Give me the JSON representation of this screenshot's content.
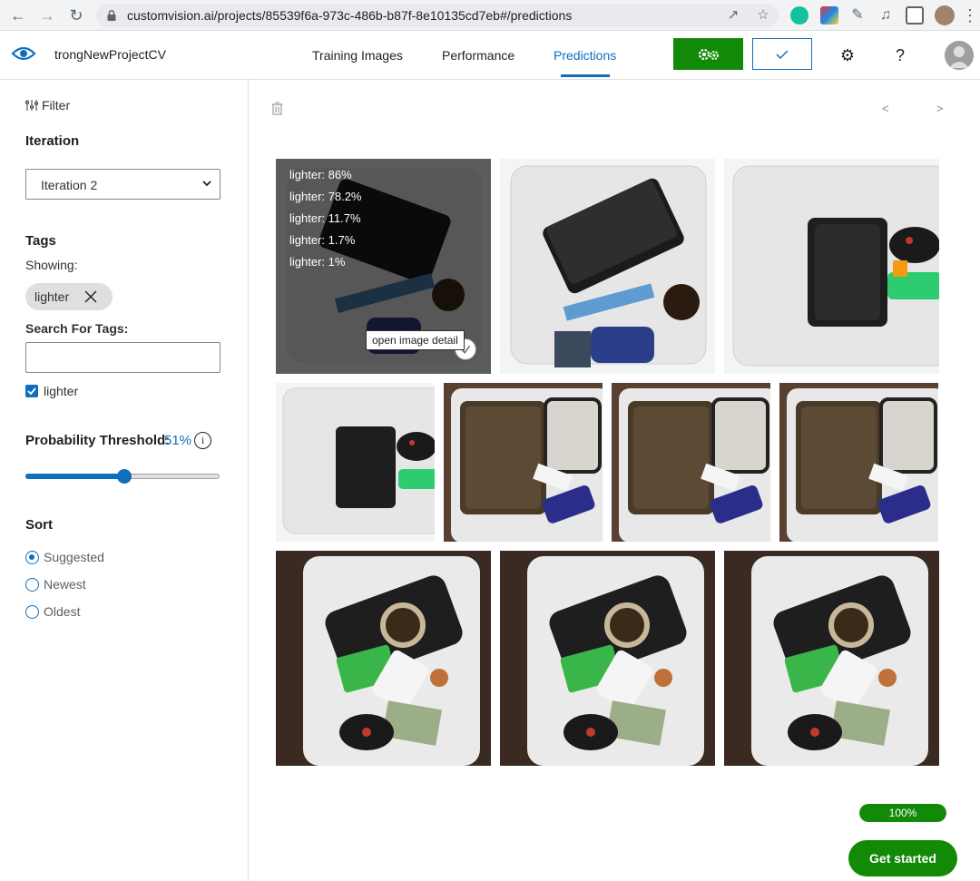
{
  "browser": {
    "url": "customvision.ai/projects/85539f6a-973c-486b-b87f-8e10135cd7eb#/predictions"
  },
  "header": {
    "project_name": "trongNewProjectCV",
    "tabs": [
      {
        "label": "Training Images",
        "active": false
      },
      {
        "label": "Performance",
        "active": false
      },
      {
        "label": "Predictions",
        "active": true
      }
    ],
    "help_label": "?"
  },
  "sidebar": {
    "filter_label": "Filter",
    "iteration_title": "Iteration",
    "iteration_selected": "Iteration 2",
    "tags_title": "Tags",
    "showing_label": "Showing:",
    "showing_tag": "lighter",
    "search_label": "Search For Tags:",
    "search_value": "",
    "tag_checkbox_label": "lighter",
    "tag_checked": true,
    "threshold_label": "Probability Threshold:",
    "threshold_value": "51%",
    "threshold_fraction": 0.51,
    "sort_title": "Sort",
    "sort_options": [
      {
        "label": "Suggested",
        "selected": true
      },
      {
        "label": "Newest",
        "selected": false
      },
      {
        "label": "Oldest",
        "selected": false
      }
    ]
  },
  "main": {
    "pager_prev": "<",
    "pager_next": ">",
    "hover_predictions": [
      "lighter: 86%",
      "lighter: 78.2%",
      "lighter: 11.7%",
      "lighter: 1.7%",
      "lighter: 1%"
    ],
    "tooltip": "open image detail",
    "progress_label": "100%",
    "progress_fraction": 1.0,
    "get_started_label": "Get started"
  }
}
